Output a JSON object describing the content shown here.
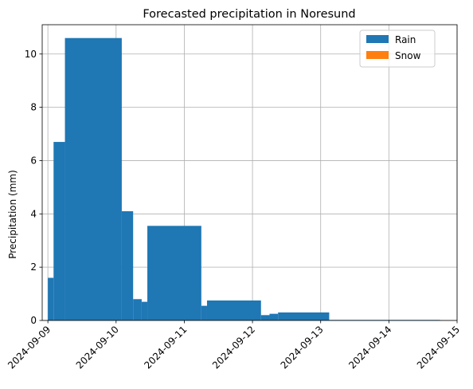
{
  "chart_data": {
    "type": "bar",
    "title": "Forecasted precipitation in Noresund",
    "xlabel": "",
    "ylabel": "Precipitation (mm)",
    "xlim": [
      "2024-09-09T00:00",
      "2024-09-15T00:00"
    ],
    "ylim": [
      0,
      11.1
    ],
    "x_ticks": [
      "2024-09-09",
      "2024-09-10",
      "2024-09-11",
      "2024-09-12",
      "2024-09-13",
      "2024-09-14",
      "2024-09-15"
    ],
    "y_ticks": [
      0,
      2,
      4,
      6,
      8,
      10
    ],
    "grid": true,
    "legend_position": "top-right",
    "series": [
      {
        "name": "Rain",
        "color": "#1f77b4",
        "bars": [
          {
            "start": "2024-09-09T00:00",
            "end": "2024-09-09T02:00",
            "value": 1.6
          },
          {
            "start": "2024-09-09T02:00",
            "end": "2024-09-09T06:00",
            "value": 6.7
          },
          {
            "start": "2024-09-09T06:00",
            "end": "2024-09-10T02:00",
            "value": 10.6
          },
          {
            "start": "2024-09-10T02:00",
            "end": "2024-09-10T06:00",
            "value": 4.1
          },
          {
            "start": "2024-09-10T06:00",
            "end": "2024-09-10T09:00",
            "value": 0.8
          },
          {
            "start": "2024-09-10T09:00",
            "end": "2024-09-10T11:00",
            "value": 0.7
          },
          {
            "start": "2024-09-10T11:00",
            "end": "2024-09-11T06:00",
            "value": 3.55
          },
          {
            "start": "2024-09-11T06:00",
            "end": "2024-09-11T08:00",
            "value": 0.55
          },
          {
            "start": "2024-09-11T08:00",
            "end": "2024-09-12T03:00",
            "value": 0.75
          },
          {
            "start": "2024-09-12T03:00",
            "end": "2024-09-12T06:00",
            "value": 0.2
          },
          {
            "start": "2024-09-12T06:00",
            "end": "2024-09-12T09:00",
            "value": 0.25
          },
          {
            "start": "2024-09-12T09:00",
            "end": "2024-09-13T03:00",
            "value": 0.3
          },
          {
            "start": "2024-09-13T03:00",
            "end": "2024-09-14T18:00",
            "value": 0.02
          }
        ]
      },
      {
        "name": "Snow",
        "color": "#ff7f0e",
        "bars": []
      }
    ]
  }
}
